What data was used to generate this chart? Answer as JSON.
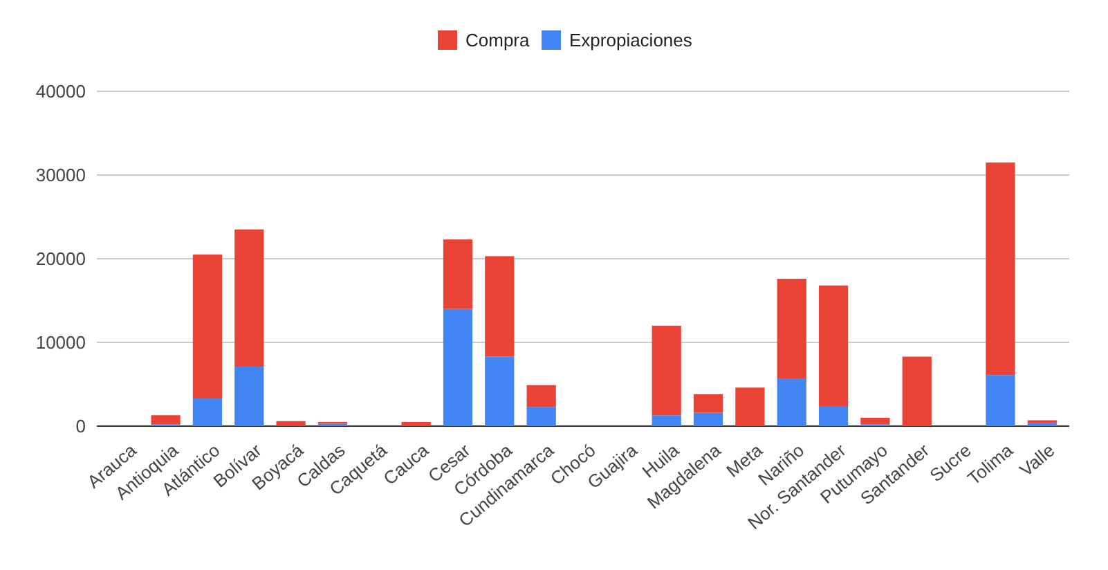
{
  "chart_data": {
    "type": "bar",
    "stacked": true,
    "legend": "top",
    "grid": "y",
    "categories": [
      "Arauca",
      "Antioquia",
      "Atlántico",
      "Bolívar",
      "Boyacá",
      "Caldas",
      "Caquetá",
      "Cauca",
      "Cesar",
      "Córdoba",
      "Cundinamarca",
      "Chocó",
      "Guajira",
      "Huila",
      "Magdalena",
      "Meta",
      "Nariño",
      "Nor. Santander",
      "Putumayo",
      "Santander",
      "Sucre",
      "Tolima",
      "Valle"
    ],
    "series": [
      {
        "name": "Expropiaciones",
        "color": "#4285f4",
        "values": [
          0,
          200,
          3300,
          7100,
          0,
          300,
          0,
          0,
          14000,
          8300,
          2300,
          0,
          0,
          1300,
          1600,
          0,
          5700,
          2400,
          200,
          0,
          0,
          6100,
          400
        ]
      },
      {
        "name": "Compra",
        "color": "#ea4335",
        "values": [
          0,
          1100,
          17200,
          16400,
          600,
          200,
          0,
          500,
          8300,
          12000,
          2600,
          0,
          0,
          10700,
          2200,
          4600,
          11900,
          14400,
          800,
          8300,
          0,
          25400,
          300
        ]
      }
    ],
    "ylim": [
      0,
      40000
    ],
    "yticks": [
      0,
      10000,
      20000,
      30000,
      40000
    ]
  }
}
